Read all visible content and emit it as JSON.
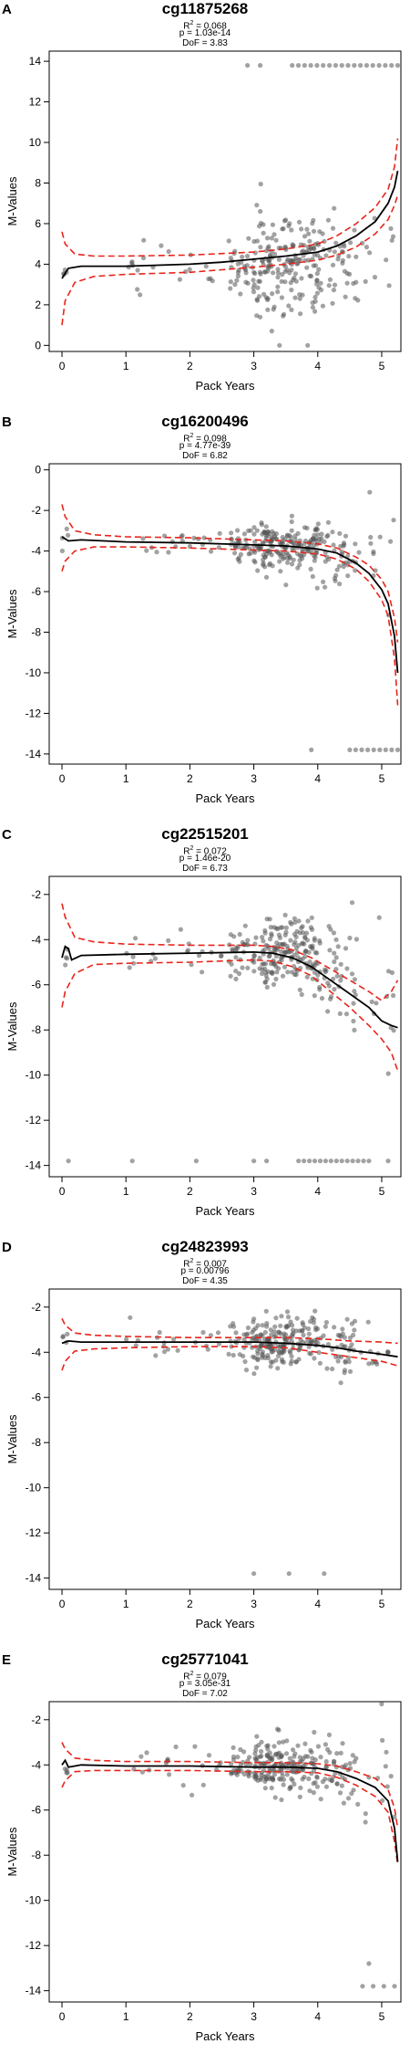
{
  "colors": {
    "points": "#555555",
    "fit": "#000000",
    "ci": "#e8241b"
  },
  "chart_data": [
    {
      "panel": "A",
      "title": "cg11875268",
      "type": "scatter",
      "r2_value": "0.068",
      "p_text": "p = 1.03e-14",
      "dof_text": "DoF = 3.83",
      "xlabel": "Pack Years",
      "ylabel": "M-Values",
      "xlim": [
        -0.2,
        5.3
      ],
      "ylim": [
        -0.3,
        14.5
      ],
      "xticks": [
        0,
        1,
        2,
        3,
        4,
        5
      ],
      "yticks": [
        0,
        2,
        4,
        6,
        8,
        10,
        12,
        14
      ],
      "fit": {
        "x": [
          0,
          0.1,
          0.3,
          1,
          2,
          2.5,
          3,
          3.5,
          4,
          4.3,
          4.6,
          4.9,
          5.1,
          5.2,
          5.25
        ],
        "y": [
          3.3,
          3.8,
          3.9,
          3.9,
          4.0,
          4.1,
          4.25,
          4.4,
          4.6,
          4.9,
          5.4,
          6.1,
          7.0,
          7.8,
          8.6
        ]
      },
      "ci_upper": {
        "x": [
          0,
          0.05,
          0.2,
          0.5,
          1,
          2,
          3,
          3.5,
          4,
          4.3,
          4.6,
          4.9,
          5.1,
          5.2,
          5.25
        ],
        "y": [
          5.6,
          5.0,
          4.5,
          4.4,
          4.4,
          4.45,
          4.6,
          4.75,
          5.0,
          5.4,
          6.0,
          6.8,
          7.7,
          8.8,
          10.2
        ]
      },
      "ci_lower": {
        "x": [
          0,
          0.05,
          0.2,
          0.5,
          1,
          2,
          3,
          3.5,
          4,
          4.3,
          4.6,
          4.9,
          5.1,
          5.2,
          5.25
        ],
        "y": [
          1.0,
          2.2,
          3.1,
          3.4,
          3.5,
          3.6,
          3.85,
          4.0,
          4.2,
          4.45,
          4.85,
          5.5,
          6.2,
          6.9,
          7.4
        ]
      },
      "clusters": [
        {
          "x0": 0,
          "x1": 0.1,
          "n": 4,
          "mean": 3.6,
          "sd": 0.5
        },
        {
          "x0": 1.0,
          "x1": 2.5,
          "n": 20,
          "mean": 4.0,
          "sd": 0.6
        },
        {
          "x0": 2.6,
          "x1": 3.0,
          "n": 30,
          "mean": 3.9,
          "sd": 0.8
        },
        {
          "x0": 3.0,
          "x1": 4.0,
          "n": 170,
          "mean": 4.0,
          "sd": 1.2
        },
        {
          "x0": 4.0,
          "x1": 4.6,
          "n": 45,
          "mean": 4.2,
          "sd": 1.1
        },
        {
          "x0": 4.6,
          "x1": 5.2,
          "n": 12,
          "mean": 4.3,
          "sd": 1.3
        }
      ],
      "extreme": {
        "y": 13.8,
        "x0": 3.6,
        "x1": 5.25,
        "n": 18,
        "extra_x": [
          2.9,
          3.1
        ]
      }
    },
    {
      "panel": "B",
      "title": "cg16200496",
      "type": "scatter",
      "r2_value": "0.098",
      "p_text": "p = 4.77e-39",
      "dof_text": "DoF = 6.82",
      "xlabel": "Pack Years",
      "ylabel": "M-Values",
      "xlim": [
        -0.2,
        5.3
      ],
      "ylim": [
        -14.5,
        0.3
      ],
      "xticks": [
        0,
        1,
        2,
        3,
        4,
        5
      ],
      "yticks": [
        0,
        -2,
        -4,
        -6,
        -8,
        -10,
        -12,
        -14
      ],
      "fit": {
        "x": [
          0,
          0.1,
          0.3,
          1,
          2,
          3,
          3.5,
          4,
          4.3,
          4.6,
          4.8,
          5.0,
          5.1,
          5.2,
          5.25
        ],
        "y": [
          -3.3,
          -3.5,
          -3.45,
          -3.55,
          -3.6,
          -3.7,
          -3.75,
          -3.9,
          -4.1,
          -4.6,
          -5.1,
          -5.9,
          -6.6,
          -8.2,
          -10.0
        ]
      },
      "ci_upper": {
        "x": [
          0,
          0.05,
          0.2,
          0.5,
          1,
          2,
          3,
          3.5,
          4,
          4.3,
          4.6,
          4.8,
          5.0,
          5.1,
          5.2,
          5.25
        ],
        "y": [
          -1.7,
          -2.3,
          -3.0,
          -3.2,
          -3.3,
          -3.35,
          -3.45,
          -3.5,
          -3.65,
          -3.85,
          -4.3,
          -4.7,
          -5.4,
          -6.0,
          -7.3,
          -8.5
        ]
      },
      "ci_lower": {
        "x": [
          0,
          0.05,
          0.2,
          0.5,
          1,
          2,
          3,
          3.5,
          4,
          4.3,
          4.6,
          4.8,
          5.0,
          5.1,
          5.2,
          5.25
        ],
        "y": [
          -5.0,
          -4.5,
          -4.0,
          -3.8,
          -3.8,
          -3.85,
          -3.95,
          -4.0,
          -4.15,
          -4.4,
          -4.9,
          -5.5,
          -6.4,
          -7.2,
          -9.3,
          -11.6
        ]
      },
      "clusters": [
        {
          "x0": 0,
          "x1": 0.1,
          "n": 4,
          "mean": -3.4,
          "sd": 0.3
        },
        {
          "x0": 1.0,
          "x1": 2.5,
          "n": 20,
          "mean": -3.6,
          "sd": 0.4
        },
        {
          "x0": 2.6,
          "x1": 3.0,
          "n": 30,
          "mean": -3.6,
          "sd": 0.5
        },
        {
          "x0": 3.0,
          "x1": 4.0,
          "n": 170,
          "mean": -3.7,
          "sd": 0.6
        },
        {
          "x0": 4.0,
          "x1": 4.6,
          "n": 45,
          "mean": -4.0,
          "sd": 0.8
        },
        {
          "x0": 4.6,
          "x1": 5.2,
          "n": 12,
          "mean": -4.8,
          "sd": 1.5
        }
      ],
      "extreme": {
        "y": -13.8,
        "x0": 4.5,
        "x1": 5.25,
        "n": 9,
        "extra_x": [
          3.9
        ]
      }
    },
    {
      "panel": "C",
      "title": "cg22515201",
      "type": "scatter",
      "r2_value": "0.072",
      "p_text": "p = 1.46e-20",
      "dof_text": "DoF = 6.73",
      "xlabel": "Pack Years",
      "ylabel": "M-Values",
      "xlim": [
        -0.2,
        5.3
      ],
      "ylim": [
        -14.5,
        -1.2
      ],
      "xticks": [
        0,
        1,
        2,
        3,
        4,
        5
      ],
      "yticks": [
        -2,
        -4,
        -6,
        -8,
        -10,
        -12,
        -14
      ],
      "fit": {
        "x": [
          0,
          0.05,
          0.1,
          0.15,
          0.3,
          1,
          2,
          3,
          3.3,
          3.6,
          3.9,
          4.2,
          4.5,
          4.8,
          5.0,
          5.15,
          5.25
        ],
        "y": [
          -4.8,
          -4.3,
          -4.4,
          -4.9,
          -4.7,
          -4.65,
          -4.6,
          -4.55,
          -4.6,
          -4.8,
          -5.2,
          -5.8,
          -6.4,
          -7.0,
          -7.6,
          -7.8,
          -7.9
        ]
      },
      "ci_upper": {
        "x": [
          0,
          0.05,
          0.2,
          0.5,
          1,
          2,
          3,
          3.3,
          3.6,
          3.9,
          4.2,
          4.5,
          4.8,
          5.0,
          5.15,
          5.25
        ],
        "y": [
          -2.4,
          -3.0,
          -3.9,
          -4.1,
          -4.2,
          -4.25,
          -4.25,
          -4.3,
          -4.45,
          -4.8,
          -5.3,
          -5.8,
          -6.3,
          -6.7,
          -6.3,
          -5.8
        ]
      },
      "ci_lower": {
        "x": [
          0,
          0.05,
          0.2,
          0.5,
          1,
          2,
          3,
          3.3,
          3.6,
          3.9,
          4.2,
          4.5,
          4.8,
          5.0,
          5.15,
          5.25
        ],
        "y": [
          -7.0,
          -6.3,
          -5.5,
          -5.1,
          -5.05,
          -5.0,
          -4.9,
          -4.95,
          -5.2,
          -5.6,
          -6.3,
          -7.0,
          -7.8,
          -8.4,
          -9.0,
          -9.8
        ]
      },
      "clusters": [
        {
          "x0": 0,
          "x1": 0.1,
          "n": 4,
          "mean": -4.6,
          "sd": 0.4
        },
        {
          "x0": 1.0,
          "x1": 2.5,
          "n": 20,
          "mean": -4.6,
          "sd": 0.5
        },
        {
          "x0": 2.6,
          "x1": 3.0,
          "n": 30,
          "mean": -4.5,
          "sd": 0.6
        },
        {
          "x0": 3.0,
          "x1": 4.0,
          "n": 170,
          "mean": -4.6,
          "sd": 0.8
        },
        {
          "x0": 4.0,
          "x1": 4.6,
          "n": 45,
          "mean": -5.5,
          "sd": 1.2
        },
        {
          "x0": 4.6,
          "x1": 5.2,
          "n": 12,
          "mean": -6.5,
          "sd": 1.8
        }
      ],
      "extreme": {
        "y": -13.8,
        "x0": 3.7,
        "x1": 4.8,
        "n": 14,
        "extra_x": [
          0.1,
          1.1,
          2.1,
          3.0,
          3.2,
          5.1
        ]
      }
    },
    {
      "panel": "D",
      "title": "cg24823993",
      "type": "scatter",
      "r2_value": "0.007",
      "p_text": "p = 0.00796",
      "dof_text": "DoF = 4.35",
      "xlabel": "Pack Years",
      "ylabel": "M-Values",
      "xlim": [
        -0.2,
        5.3
      ],
      "ylim": [
        -14.5,
        -1.2
      ],
      "xticks": [
        0,
        1,
        2,
        3,
        4,
        5
      ],
      "yticks": [
        -2,
        -4,
        -6,
        -8,
        -10,
        -12,
        -14
      ],
      "fit": {
        "x": [
          0,
          0.1,
          0.3,
          1,
          2,
          3,
          3.5,
          4,
          4.3,
          4.6,
          4.9,
          5.25
        ],
        "y": [
          -3.6,
          -3.5,
          -3.55,
          -3.55,
          -3.55,
          -3.55,
          -3.6,
          -3.7,
          -3.8,
          -3.95,
          -4.05,
          -4.2
        ]
      },
      "ci_upper": {
        "x": [
          0,
          0.05,
          0.2,
          0.5,
          1,
          2,
          3,
          3.5,
          4,
          4.5,
          5.0,
          5.25
        ],
        "y": [
          -2.5,
          -2.8,
          -3.15,
          -3.25,
          -3.3,
          -3.35,
          -3.35,
          -3.35,
          -3.4,
          -3.5,
          -3.55,
          -3.6
        ]
      },
      "ci_lower": {
        "x": [
          0,
          0.05,
          0.2,
          0.5,
          1,
          2,
          3,
          3.5,
          4,
          4.5,
          5.0,
          5.25
        ],
        "y": [
          -4.8,
          -4.4,
          -3.95,
          -3.85,
          -3.8,
          -3.75,
          -3.75,
          -3.8,
          -4.0,
          -4.2,
          -4.4,
          -4.6
        ]
      },
      "clusters": [
        {
          "x0": 0,
          "x1": 0.1,
          "n": 4,
          "mean": -3.5,
          "sd": 0.3
        },
        {
          "x0": 1.0,
          "x1": 2.5,
          "n": 20,
          "mean": -3.5,
          "sd": 0.4
        },
        {
          "x0": 2.6,
          "x1": 3.0,
          "n": 30,
          "mean": -3.5,
          "sd": 0.5
        },
        {
          "x0": 3.0,
          "x1": 4.0,
          "n": 170,
          "mean": -3.5,
          "sd": 0.6
        },
        {
          "x0": 4.0,
          "x1": 4.6,
          "n": 45,
          "mean": -3.7,
          "sd": 0.7
        },
        {
          "x0": 4.6,
          "x1": 5.2,
          "n": 12,
          "mean": -3.9,
          "sd": 0.6
        }
      ],
      "extreme": {
        "y": -13.8,
        "x0": 3.0,
        "x1": 4.1,
        "n": 3,
        "extra_x": []
      }
    },
    {
      "panel": "E",
      "title": "cg25771041",
      "type": "scatter",
      "r2_value": "0.079",
      "p_text": "p = 3.05e-31",
      "dof_text": "DoF = 7.02",
      "xlabel": "Pack Years",
      "ylabel": "M-Values",
      "xlim": [
        -0.2,
        5.3
      ],
      "ylim": [
        -14.5,
        -1.2
      ],
      "xticks": [
        0,
        1,
        2,
        3,
        4,
        5
      ],
      "yticks": [
        -2,
        -4,
        -6,
        -8,
        -10,
        -12,
        -14
      ],
      "fit": {
        "x": [
          0,
          0.05,
          0.1,
          0.3,
          1,
          2,
          3,
          3.5,
          4,
          4.3,
          4.6,
          4.9,
          5.1,
          5.2,
          5.25
        ],
        "y": [
          -4.0,
          -3.8,
          -4.1,
          -4.0,
          -4.05,
          -4.05,
          -4.1,
          -4.1,
          -4.15,
          -4.3,
          -4.6,
          -5.0,
          -5.6,
          -6.8,
          -8.3
        ]
      },
      "ci_upper": {
        "x": [
          0,
          0.05,
          0.2,
          0.5,
          1,
          2,
          3,
          3.5,
          4,
          4.3,
          4.6,
          4.9,
          5.1,
          5.2,
          5.25
        ],
        "y": [
          -3.0,
          -3.3,
          -3.7,
          -3.8,
          -3.85,
          -3.85,
          -3.9,
          -3.9,
          -3.95,
          -4.05,
          -4.3,
          -4.6,
          -5.1,
          -5.9,
          -6.8
        ]
      },
      "ci_lower": {
        "x": [
          0,
          0.05,
          0.2,
          0.5,
          1,
          2,
          3,
          3.5,
          4,
          4.3,
          4.6,
          4.9,
          5.1,
          5.2,
          5.25
        ],
        "y": [
          -5.0,
          -4.7,
          -4.3,
          -4.25,
          -4.25,
          -4.25,
          -4.3,
          -4.3,
          -4.35,
          -4.55,
          -4.9,
          -5.4,
          -6.1,
          -7.4,
          -8.4
        ]
      },
      "clusters": [
        {
          "x0": 0,
          "x1": 0.1,
          "n": 4,
          "mean": -4.0,
          "sd": 0.3
        },
        {
          "x0": 1.0,
          "x1": 2.5,
          "n": 20,
          "mean": -4.0,
          "sd": 0.4
        },
        {
          "x0": 2.6,
          "x1": 3.0,
          "n": 30,
          "mean": -4.0,
          "sd": 0.4
        },
        {
          "x0": 3.0,
          "x1": 4.0,
          "n": 170,
          "mean": -4.1,
          "sd": 0.5
        },
        {
          "x0": 4.0,
          "x1": 4.6,
          "n": 45,
          "mean": -4.3,
          "sd": 0.6
        },
        {
          "x0": 4.6,
          "x1": 5.2,
          "n": 12,
          "mean": -4.8,
          "sd": 1.2
        }
      ],
      "extreme": {
        "y": -13.8,
        "x0": 4.7,
        "x1": 5.2,
        "n": 4,
        "extra_x": []
      },
      "extra_points": [
        {
          "x": 4.8,
          "y": -12.8
        },
        {
          "x": 5.0,
          "y": -1.3
        }
      ]
    }
  ]
}
